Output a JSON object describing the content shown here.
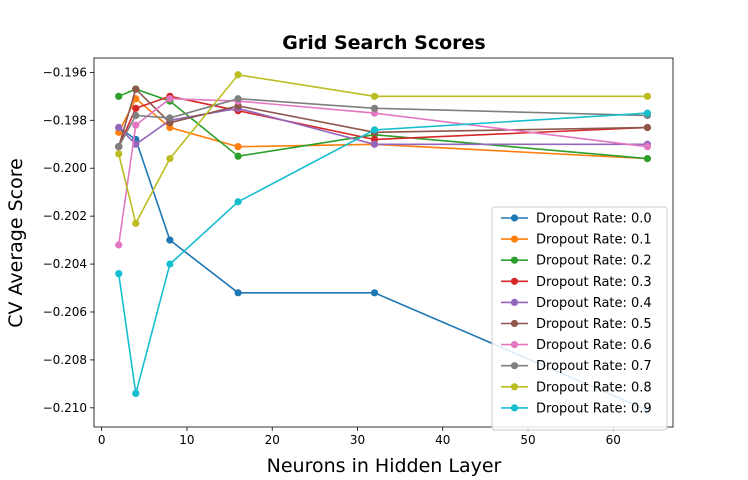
{
  "chart_data": {
    "type": "line",
    "title": "Grid Search Scores",
    "xlabel": "Neurons in Hidden Layer",
    "ylabel": "CV Average Score",
    "xlim": [
      -0.9,
      67
    ],
    "ylim": [
      -0.2108,
      -0.1954
    ],
    "xticks": [
      0,
      10,
      20,
      30,
      40,
      50,
      60
    ],
    "yticks": [
      -0.21,
      -0.208,
      -0.206,
      -0.204,
      -0.202,
      -0.2,
      -0.198,
      -0.196
    ],
    "ytick_labels": [
      "−0.210",
      "−0.208",
      "−0.206",
      "−0.204",
      "−0.202",
      "−0.200",
      "−0.198",
      "−0.196"
    ],
    "legend_position": "lower-right",
    "x": [
      2,
      4,
      8,
      16,
      32,
      64
    ],
    "series": [
      {
        "name": "Dropout Rate: 0.0",
        "color": "#1f77b4",
        "values": [
          -0.1983,
          -0.1988,
          -0.203,
          -0.2052,
          -0.2052,
          -0.2101
        ]
      },
      {
        "name": "Dropout Rate: 0.1",
        "color": "#ff7f0e",
        "values": [
          -0.1985,
          -0.1971,
          -0.1983,
          -0.1991,
          -0.199,
          -0.1996
        ]
      },
      {
        "name": "Dropout Rate: 0.2",
        "color": "#2ca02c",
        "values": [
          -0.197,
          -0.1967,
          -0.1972,
          -0.1995,
          -0.1986,
          -0.1996
        ]
      },
      {
        "name": "Dropout Rate: 0.3",
        "color": "#d62728",
        "values": [
          -0.1991,
          -0.1975,
          -0.197,
          -0.1976,
          -0.1988,
          -0.1983
        ]
      },
      {
        "name": "Dropout Rate: 0.4",
        "color": "#9467bd",
        "values": [
          -0.1983,
          -0.199,
          -0.198,
          -0.1975,
          -0.199,
          -0.199
        ]
      },
      {
        "name": "Dropout Rate: 0.5",
        "color": "#8c564b",
        "values": [
          -0.1991,
          -0.1967,
          -0.1981,
          -0.1974,
          -0.1985,
          -0.1983
        ]
      },
      {
        "name": "Dropout Rate: 0.6",
        "color": "#e377c2",
        "values": [
          -0.2032,
          -0.1982,
          -0.1971,
          -0.1972,
          -0.1977,
          -0.1991
        ]
      },
      {
        "name": "Dropout Rate: 0.7",
        "color": "#7f7f7f",
        "values": [
          -0.1991,
          -0.1978,
          -0.1979,
          -0.1971,
          -0.1975,
          -0.1978
        ]
      },
      {
        "name": "Dropout Rate: 0.8",
        "color": "#bcbd22",
        "values": [
          -0.1994,
          -0.2023,
          -0.1996,
          -0.1961,
          -0.197,
          -0.197
        ]
      },
      {
        "name": "Dropout Rate: 0.9",
        "color": "#17becf",
        "values": [
          -0.2044,
          -0.2094,
          -0.204,
          -0.2014,
          -0.1984,
          -0.1977
        ]
      }
    ]
  }
}
